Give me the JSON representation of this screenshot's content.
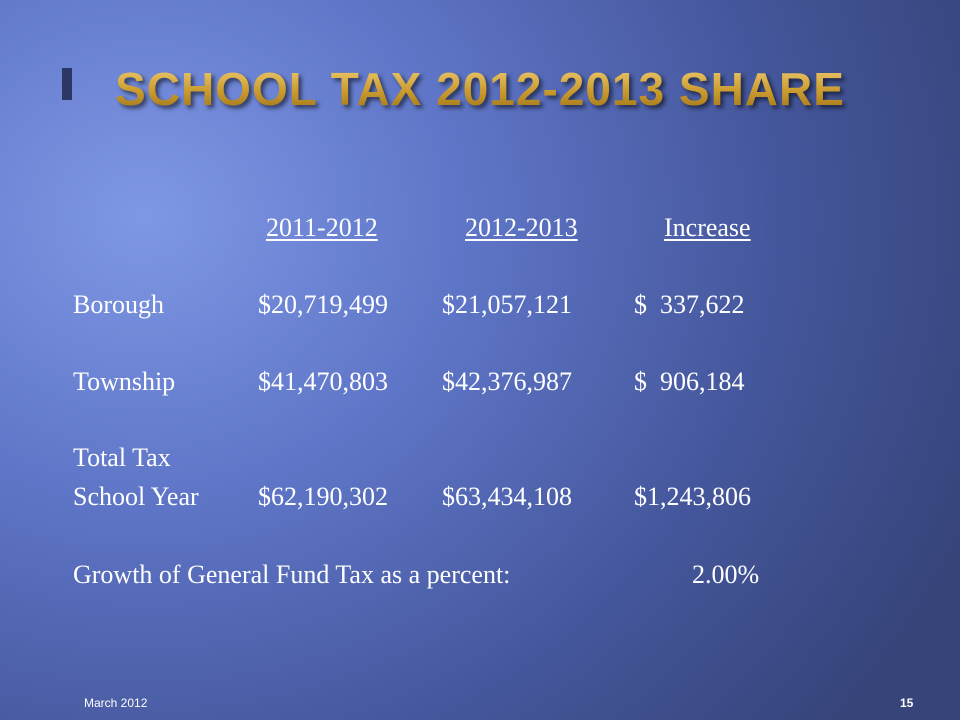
{
  "title": "SCHOOL TAX 2012-2013 SHARE",
  "table": {
    "columns": [
      "2011-2012",
      "2012-2013",
      "Increase"
    ],
    "rows": [
      {
        "label": [
          "Borough"
        ],
        "values": [
          "$20,719,499",
          "$21,057,121",
          "$  337,622"
        ]
      },
      {
        "label": [
          "Township"
        ],
        "values": [
          "$41,470,803",
          "$42,376,987",
          "$  906,184"
        ]
      },
      {
        "label": [
          "Total Tax",
          "School Year"
        ],
        "values": [
          "$62,190,302",
          "$63,434,108",
          "$1,243,806"
        ]
      }
    ]
  },
  "growth": {
    "label": "Growth of General Fund Tax as a percent:",
    "value": "2.00%"
  },
  "footer": {
    "date": "March 2012",
    "page": "15"
  }
}
